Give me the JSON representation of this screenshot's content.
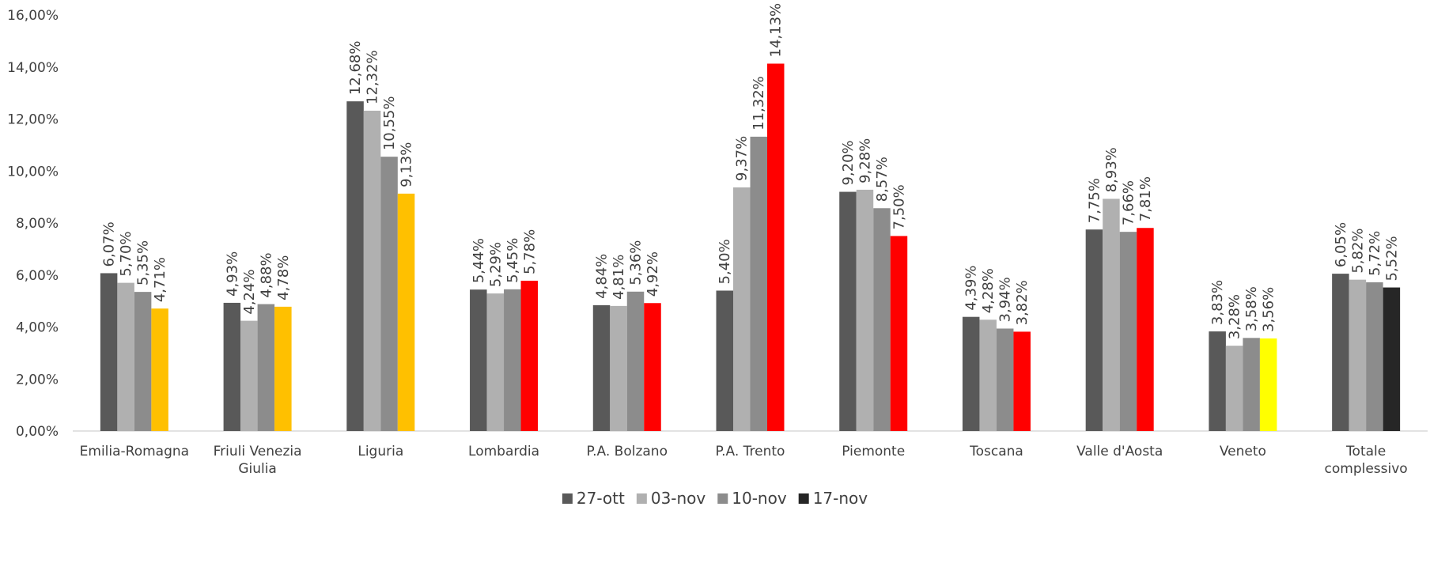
{
  "chart_data": {
    "type": "bar",
    "title": "",
    "xlabel": "",
    "ylabel": "",
    "ylim": [
      0,
      16
    ],
    "yticks": [
      "0,00%",
      "2,00%",
      "4,00%",
      "6,00%",
      "8,00%",
      "10,00%",
      "12,00%",
      "14,00%",
      "16,00%"
    ],
    "grid": false,
    "legend_position": "bottom",
    "categories": [
      [
        "Emilia-Romagna"
      ],
      [
        "Friuli Venezia",
        "Giulia"
      ],
      [
        "Liguria"
      ],
      [
        "Lombardia"
      ],
      [
        "P.A. Bolzano"
      ],
      [
        "P.A. Trento"
      ],
      [
        "Piemonte"
      ],
      [
        "Toscana"
      ],
      [
        "Valle d'Aosta"
      ],
      [
        "Veneto"
      ],
      [
        "Totale",
        "complessivo"
      ]
    ],
    "series": [
      {
        "name": "27-ott",
        "color": "#595959",
        "values": [
          6.07,
          4.93,
          12.68,
          5.44,
          4.84,
          5.4,
          9.2,
          4.39,
          7.75,
          3.83,
          6.05
        ],
        "labels": [
          "6,07%",
          "4,93%",
          "12,68%",
          "5,44%",
          "4,84%",
          "5,40%",
          "9,20%",
          "4,39%",
          "7,75%",
          "3,83%",
          "6,05%"
        ]
      },
      {
        "name": "03-nov",
        "color": "#b0b0b0",
        "values": [
          5.7,
          4.24,
          12.32,
          5.29,
          4.81,
          9.37,
          9.28,
          4.28,
          8.93,
          3.28,
          5.82
        ],
        "labels": [
          "5,70%",
          "4,24%",
          "12,32%",
          "5,29%",
          "4,81%",
          "9,37%",
          "9,28%",
          "4,28%",
          "8,93%",
          "3,28%",
          "5,82%"
        ]
      },
      {
        "name": "10-nov",
        "color": "#8c8c8c",
        "values": [
          5.35,
          4.88,
          10.55,
          5.45,
          5.36,
          11.32,
          8.57,
          3.94,
          7.66,
          3.58,
          5.72
        ],
        "labels": [
          "5,35%",
          "4,88%",
          "10,55%",
          "5,45%",
          "5,36%",
          "11,32%",
          "8,57%",
          "3,94%",
          "7,66%",
          "3,58%",
          "5,72%"
        ]
      },
      {
        "name": "17-nov",
        "color": "#262626",
        "values": [
          4.71,
          4.78,
          9.13,
          5.78,
          4.92,
          14.13,
          7.5,
          3.82,
          7.81,
          3.56,
          5.52
        ],
        "labels": [
          "4,71%",
          "4,78%",
          "9,13%",
          "5,78%",
          "4,92%",
          "14,13%",
          "7,50%",
          "3,82%",
          "7,81%",
          "3,56%",
          "5,52%"
        ],
        "point_colors": [
          "#ffc000",
          "#ffc000",
          "#ffc000",
          "#ff0000",
          "#ff0000",
          "#ff0000",
          "#ff0000",
          "#ff0000",
          "#ff0000",
          "#ffff00",
          "#262626"
        ]
      }
    ],
    "colors": {
      "axis": "#d9d9d9",
      "text": "#404040"
    }
  }
}
